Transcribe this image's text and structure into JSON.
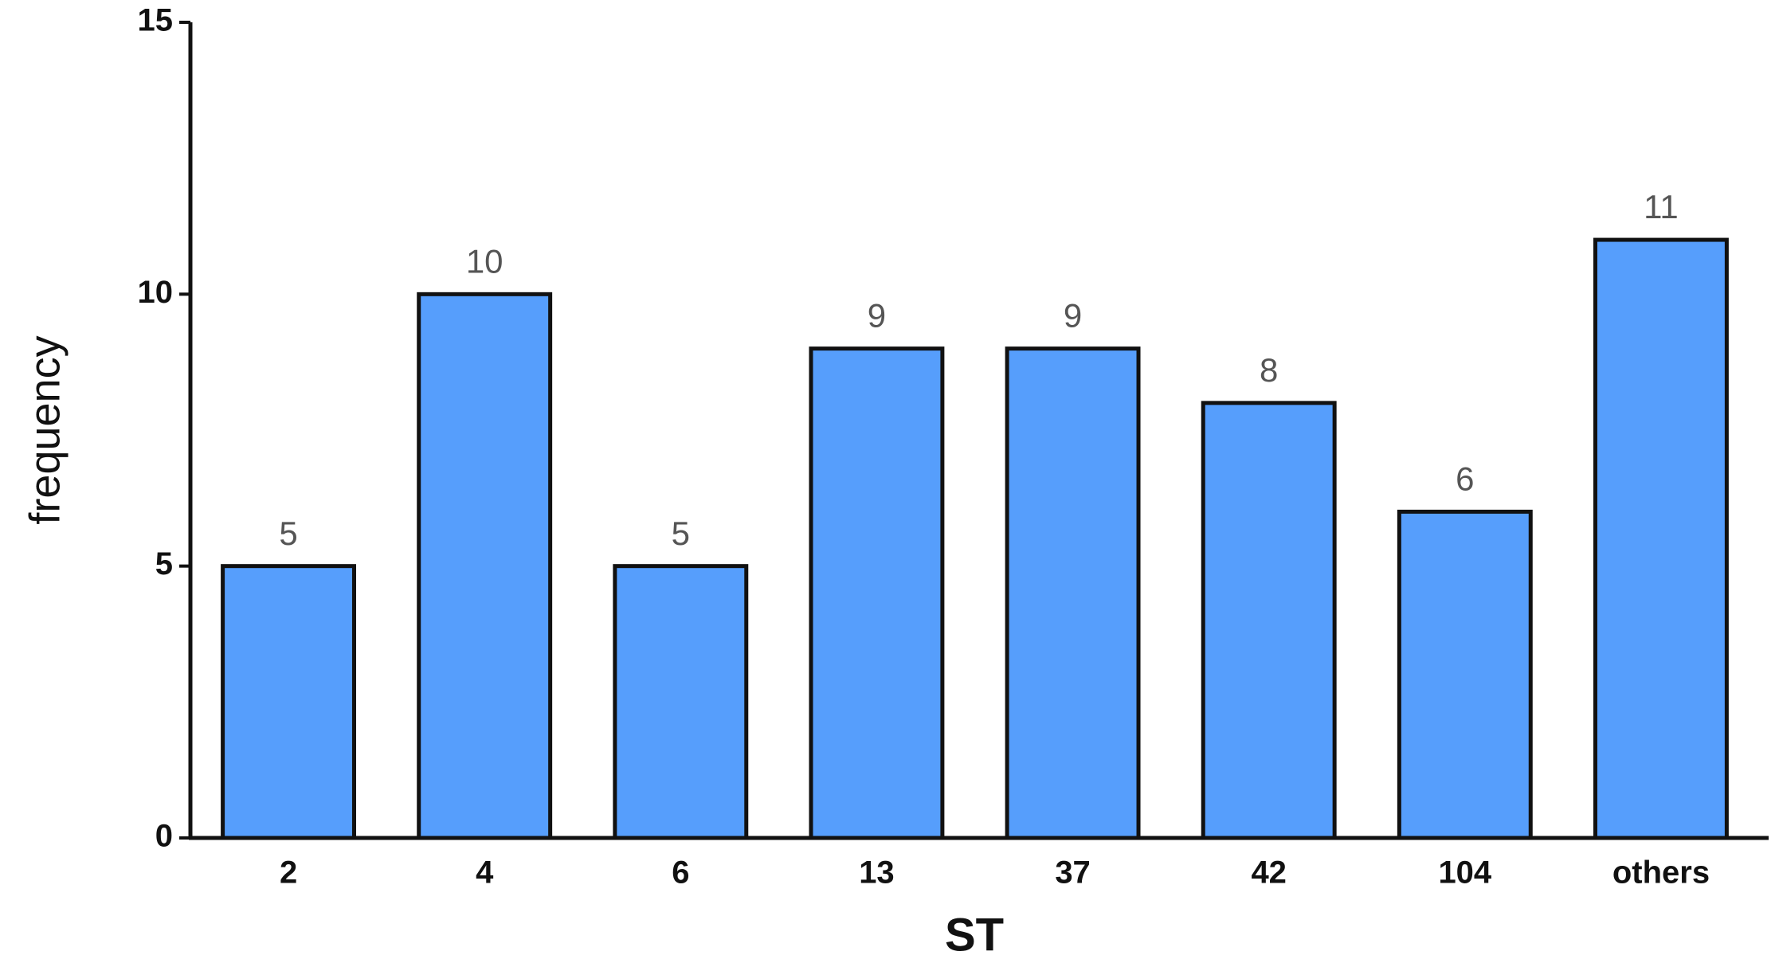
{
  "chart_data": {
    "type": "bar",
    "x_label": "ST",
    "y_label": "frequency",
    "categories": [
      "2",
      "4",
      "6",
      "13",
      "37",
      "42",
      "104",
      "others"
    ],
    "values": [
      5,
      10,
      5,
      9,
      9,
      8,
      6,
      11
    ],
    "color": "#569efc",
    "ylim": [
      0,
      15
    ],
    "yticks": [
      0,
      5,
      10,
      15
    ]
  }
}
